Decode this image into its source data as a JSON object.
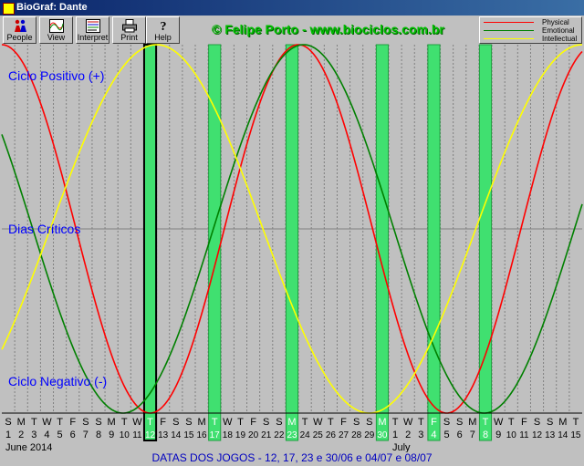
{
  "window": {
    "title": "BioGraf: Dante"
  },
  "toolbar": {
    "buttons": [
      {
        "label": "People",
        "icon": "people-icon"
      },
      {
        "label": "View",
        "icon": "view-icon"
      },
      {
        "label": "Interpret",
        "icon": "interpret-icon"
      },
      {
        "label": "Print",
        "icon": "print-icon"
      },
      {
        "label": "Help",
        "icon": "help-icon"
      }
    ]
  },
  "credit": "© Felipe Porto - www.biociclos.com.br",
  "legend": [
    {
      "name": "Physical",
      "color": "#ff0000"
    },
    {
      "name": "Emotional",
      "color": "#008000"
    },
    {
      "name": "Intellectual",
      "color": "#ffff00"
    }
  ],
  "labels": {
    "positive": "Ciclo Positivo (+)",
    "critical": "Dias Críticos",
    "negative": "Ciclo Negativo (-)"
  },
  "chart_data": {
    "type": "line",
    "days": [
      {
        "w": "S",
        "d": "1"
      },
      {
        "w": "M",
        "d": "2"
      },
      {
        "w": "T",
        "d": "3"
      },
      {
        "w": "W",
        "d": "4"
      },
      {
        "w": "T",
        "d": "5"
      },
      {
        "w": "F",
        "d": "6"
      },
      {
        "w": "S",
        "d": "7"
      },
      {
        "w": "S",
        "d": "8"
      },
      {
        "w": "M",
        "d": "9"
      },
      {
        "w": "T",
        "d": "10"
      },
      {
        "w": "W",
        "d": "11"
      },
      {
        "w": "T",
        "d": "12"
      },
      {
        "w": "F",
        "d": "13"
      },
      {
        "w": "S",
        "d": "14"
      },
      {
        "w": "S",
        "d": "15"
      },
      {
        "w": "M",
        "d": "16"
      },
      {
        "w": "T",
        "d": "17"
      },
      {
        "w": "W",
        "d": "18"
      },
      {
        "w": "T",
        "d": "19"
      },
      {
        "w": "F",
        "d": "20"
      },
      {
        "w": "S",
        "d": "21"
      },
      {
        "w": "S",
        "d": "22"
      },
      {
        "w": "M",
        "d": "23"
      },
      {
        "w": "T",
        "d": "24"
      },
      {
        "w": "W",
        "d": "25"
      },
      {
        "w": "T",
        "d": "26"
      },
      {
        "w": "F",
        "d": "27"
      },
      {
        "w": "S",
        "d": "28"
      },
      {
        "w": "S",
        "d": "29"
      },
      {
        "w": "M",
        "d": "30"
      },
      {
        "w": "T",
        "d": "1"
      },
      {
        "w": "W",
        "d": "2"
      },
      {
        "w": "T",
        "d": "3"
      },
      {
        "w": "F",
        "d": "4"
      },
      {
        "w": "S",
        "d": "5"
      },
      {
        "w": "S",
        "d": "6"
      },
      {
        "w": "M",
        "d": "7"
      },
      {
        "w": "T",
        "d": "8"
      },
      {
        "w": "W",
        "d": "9"
      },
      {
        "w": "T",
        "d": "10"
      },
      {
        "w": "F",
        "d": "11"
      },
      {
        "w": "S",
        "d": "12"
      },
      {
        "w": "S",
        "d": "13"
      },
      {
        "w": "M",
        "d": "14"
      },
      {
        "w": "T",
        "d": "15"
      }
    ],
    "months": [
      {
        "name": "June 2014",
        "start_index": 0
      },
      {
        "name": "July",
        "start_index": 30
      }
    ],
    "game_day_indices": [
      11,
      16,
      22,
      29,
      33,
      37
    ],
    "selected_day_index": 11,
    "series": [
      {
        "name": "Physical",
        "period_days": 23,
        "peak_index": 22.5,
        "color": "#ff0000"
      },
      {
        "name": "Emotional",
        "period_days": 28,
        "peak_index": 22.9,
        "color": "#008000"
      },
      {
        "name": "Intellectual",
        "period_days": 33,
        "peak_index": 11.5,
        "color": "#ffff00"
      }
    ],
    "ylim": [
      -1,
      1
    ]
  },
  "status": "DATAS DOS JOGOS - 12, 17, 23 e 30/06 e 04/07 e 08/07"
}
